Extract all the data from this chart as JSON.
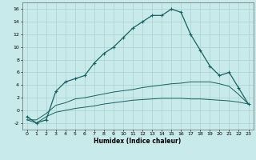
{
  "xlabel": "Humidex (Indice chaleur)",
  "background_color": "#c8eaea",
  "grid_color": "#a8d0d0",
  "line_color": "#1a6060",
  "xlim": [
    -0.5,
    23.5
  ],
  "ylim": [
    -3,
    17
  ],
  "xticks": [
    0,
    1,
    2,
    3,
    4,
    5,
    6,
    7,
    8,
    9,
    10,
    11,
    12,
    13,
    14,
    15,
    16,
    17,
    18,
    19,
    20,
    21,
    22,
    23
  ],
  "yticks": [
    -2,
    0,
    2,
    4,
    6,
    8,
    10,
    12,
    14,
    16
  ],
  "x_main": [
    0,
    1,
    2,
    3,
    4,
    5,
    6,
    7,
    8,
    9,
    10,
    11,
    12,
    13,
    14,
    15,
    16,
    17,
    18,
    19,
    20,
    21,
    22,
    23
  ],
  "y_main": [
    -1.0,
    -2.0,
    -1.5,
    3.0,
    4.5,
    5.0,
    5.5,
    7.5,
    9.0,
    10.0,
    11.5,
    13.0,
    14.0,
    15.0,
    15.0,
    16.0,
    15.5,
    12.0,
    9.5,
    7.0,
    5.5,
    6.0,
    3.5,
    1.0
  ],
  "x_low1": [
    0,
    1,
    2,
    3,
    4,
    5,
    6,
    7,
    8,
    9,
    10,
    11,
    12,
    13,
    14,
    15,
    16,
    17,
    18,
    19,
    20,
    21,
    22,
    23
  ],
  "y_low1": [
    -1.5,
    -2.0,
    -1.0,
    -0.3,
    0.0,
    0.3,
    0.5,
    0.7,
    1.0,
    1.2,
    1.4,
    1.6,
    1.7,
    1.8,
    1.9,
    1.9,
    1.9,
    1.8,
    1.8,
    1.7,
    1.6,
    1.5,
    1.3,
    1.0
  ],
  "x_low2": [
    0,
    1,
    2,
    3,
    4,
    5,
    6,
    7,
    8,
    9,
    10,
    11,
    12,
    13,
    14,
    15,
    16,
    17,
    18,
    19,
    20,
    21,
    22,
    23
  ],
  "y_low2": [
    -1.5,
    -1.5,
    -0.5,
    0.8,
    1.2,
    1.8,
    2.0,
    2.3,
    2.6,
    2.9,
    3.1,
    3.3,
    3.6,
    3.8,
    4.0,
    4.2,
    4.3,
    4.5,
    4.5,
    4.5,
    4.2,
    3.8,
    2.5,
    1.0
  ]
}
